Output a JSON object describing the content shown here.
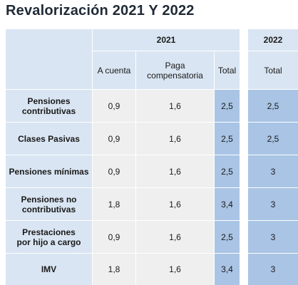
{
  "title": "Revalorización 2021 Y 2022",
  "header": {
    "year_2021": "2021",
    "year_2022": "2022",
    "col_a_cuenta": "A cuenta",
    "col_paga": "Paga\ncompensatoria",
    "col_total_2021": "Total",
    "col_total_2022": "Total"
  },
  "rows": [
    {
      "label": "Pensiones\ncontributivas",
      "a_cuenta": "0,9",
      "paga": "1,6",
      "total_2021": "2,5",
      "total_2022": "2,5"
    },
    {
      "label": "Clases Pasivas",
      "a_cuenta": "0,9",
      "paga": "1,6",
      "total_2021": "2,5",
      "total_2022": "2,5"
    },
    {
      "label": "Pensiones mínimas",
      "a_cuenta": "0,9",
      "paga": "1,6",
      "total_2021": "2,5",
      "total_2022": "3"
    },
    {
      "label": "Pensiones no\ncontributivas",
      "a_cuenta": "1,8",
      "paga": "1,6",
      "total_2021": "3,4",
      "total_2022": "3"
    },
    {
      "label": "Prestaciones\npor hijo a cargo",
      "a_cuenta": "0,9",
      "paga": "1,6",
      "total_2021": "2,5",
      "total_2022": "3"
    },
    {
      "label": "IMV",
      "a_cuenta": "1,8",
      "paga": "1,6",
      "total_2021": "3,4",
      "total_2022": "3"
    }
  ],
  "colors": {
    "light_blue": "#d9e5f2",
    "mid_blue": "#a9c4e4",
    "gray": "#efefef"
  }
}
